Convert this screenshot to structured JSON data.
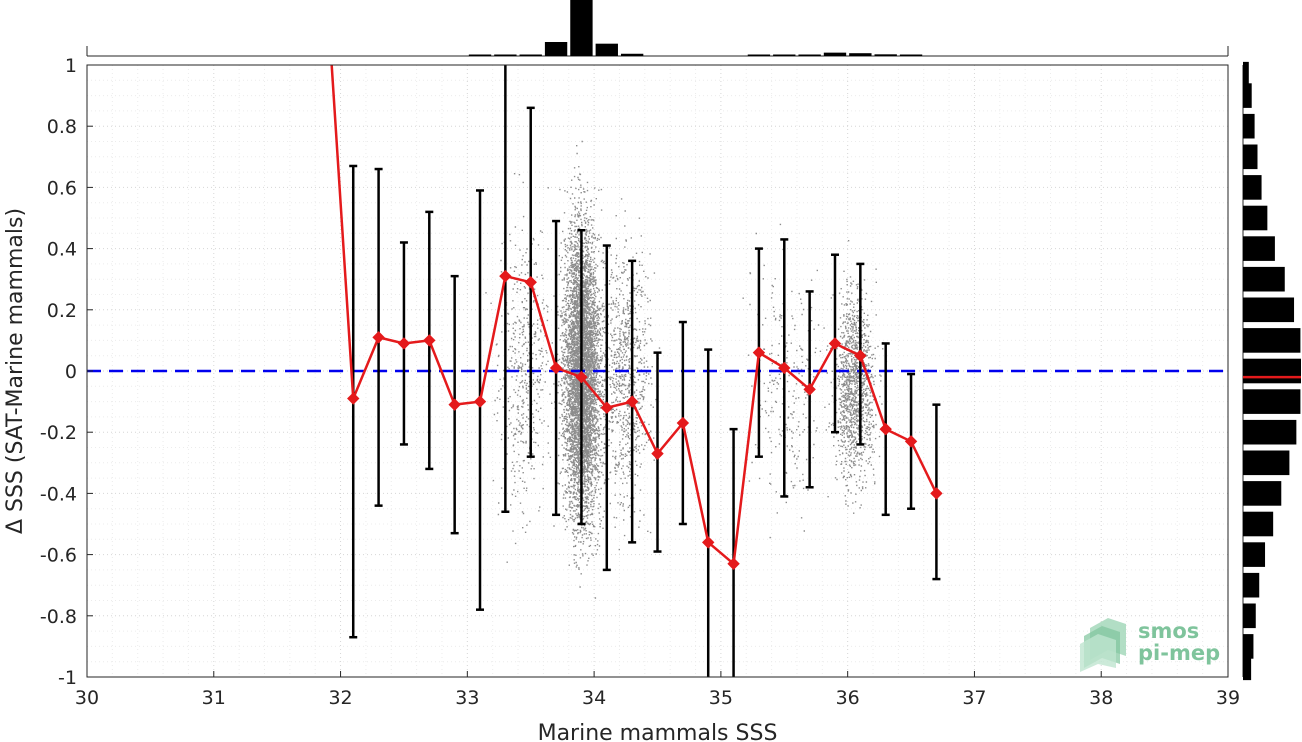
{
  "chart_data": {
    "type": "scatter",
    "xlabel": "Marine mammals SSS",
    "ylabel": "Δ SSS (SAT-Marine mammals)",
    "xlim": [
      30,
      39
    ],
    "ylim": [
      -1,
      1
    ],
    "xticks": [
      "30",
      "31",
      "32",
      "33",
      "34",
      "35",
      "36",
      "37",
      "38",
      "39"
    ],
    "yticks": [
      "-1",
      "-0.8",
      "-0.6",
      "-0.4",
      "-0.2",
      "0",
      "0.2",
      "0.4",
      "0.6",
      "0.8",
      "1"
    ],
    "grid": true,
    "zero_line": {
      "y": 0,
      "color": "#0000ee",
      "style": "dashed"
    },
    "scatter_color": "#8c8c8c",
    "line_color": "#e41a1c",
    "errorbar_color": "#000000",
    "series": {
      "x": [
        32.1,
        32.3,
        32.5,
        32.7,
        32.9,
        33.1,
        33.3,
        33.5,
        33.7,
        33.9,
        34.1,
        34.3,
        34.5,
        34.7,
        34.9,
        35.1,
        35.3,
        35.5,
        35.7,
        35.9,
        36.1,
        36.3,
        36.5,
        36.7
      ],
      "mean": [
        -0.09,
        0.11,
        0.09,
        0.1,
        -0.11,
        -0.1,
        0.31,
        0.29,
        0.01,
        -0.02,
        -0.12,
        -0.1,
        -0.27,
        -0.17,
        -0.56,
        -0.63,
        0.06,
        0.01,
        -0.06,
        0.09,
        0.05,
        -0.19,
        -0.23,
        -0.4
      ],
      "err_hi": [
        0.67,
        0.66,
        0.42,
        0.52,
        0.31,
        0.59,
        1.0,
        0.86,
        0.49,
        0.46,
        0.41,
        0.36,
        0.06,
        0.16,
        0.07,
        -0.19,
        0.4,
        0.43,
        0.26,
        0.38,
        0.35,
        0.09,
        -0.01,
        -0.11
      ],
      "err_lo": [
        -0.87,
        -0.44,
        -0.24,
        -0.32,
        -0.53,
        -0.78,
        -0.46,
        -0.28,
        -0.47,
        -0.5,
        -0.65,
        -0.56,
        -0.59,
        -0.5,
        -1.0,
        -1.0,
        -0.28,
        -0.41,
        -0.38,
        -0.2,
        -0.24,
        -0.47,
        -0.45,
        -0.68
      ]
    },
    "top_histogram": {
      "bins": [
        33.1,
        33.3,
        33.5,
        33.7,
        33.9,
        34.1,
        34.3,
        35.3,
        35.5,
        35.7,
        35.9,
        36.1,
        36.3,
        36.5
      ],
      "counts": [
        0.02,
        0.02,
        0.02,
        0.25,
        1.0,
        0.22,
        0.04,
        0.01,
        0.01,
        0.02,
        0.06,
        0.05,
        0.03,
        0.02
      ]
    },
    "right_histogram": {
      "bins": [
        0.97,
        0.9,
        0.8,
        0.7,
        0.6,
        0.5,
        0.4,
        0.3,
        0.2,
        0.1,
        0.0,
        -0.1,
        -0.2,
        -0.3,
        -0.4,
        -0.5,
        -0.6,
        -0.7,
        -0.8,
        -0.9,
        -0.97
      ],
      "counts": [
        0.1,
        0.15,
        0.2,
        0.25,
        0.32,
        0.42,
        0.55,
        0.72,
        0.88,
        0.99,
        1.0,
        0.99,
        0.92,
        0.8,
        0.66,
        0.52,
        0.38,
        0.28,
        0.22,
        0.18,
        0.14
      ],
      "median_color": "#e41a1c"
    },
    "scatter_clusters": [
      {
        "center": 33.9,
        "spread": 0.18,
        "density": 7000,
        "ysd": 0.55
      },
      {
        "center": 34.25,
        "spread": 0.25,
        "density": 900,
        "ysd": 0.5
      },
      {
        "center": 33.45,
        "spread": 0.25,
        "density": 500,
        "ysd": 0.55
      },
      {
        "center": 36.05,
        "spread": 0.2,
        "density": 1300,
        "ysd": 0.35
      },
      {
        "center": 35.5,
        "spread": 0.35,
        "density": 250,
        "ysd": 0.45
      }
    ]
  },
  "logo": {
    "line1": "smos",
    "line2": "pi-mep"
  }
}
